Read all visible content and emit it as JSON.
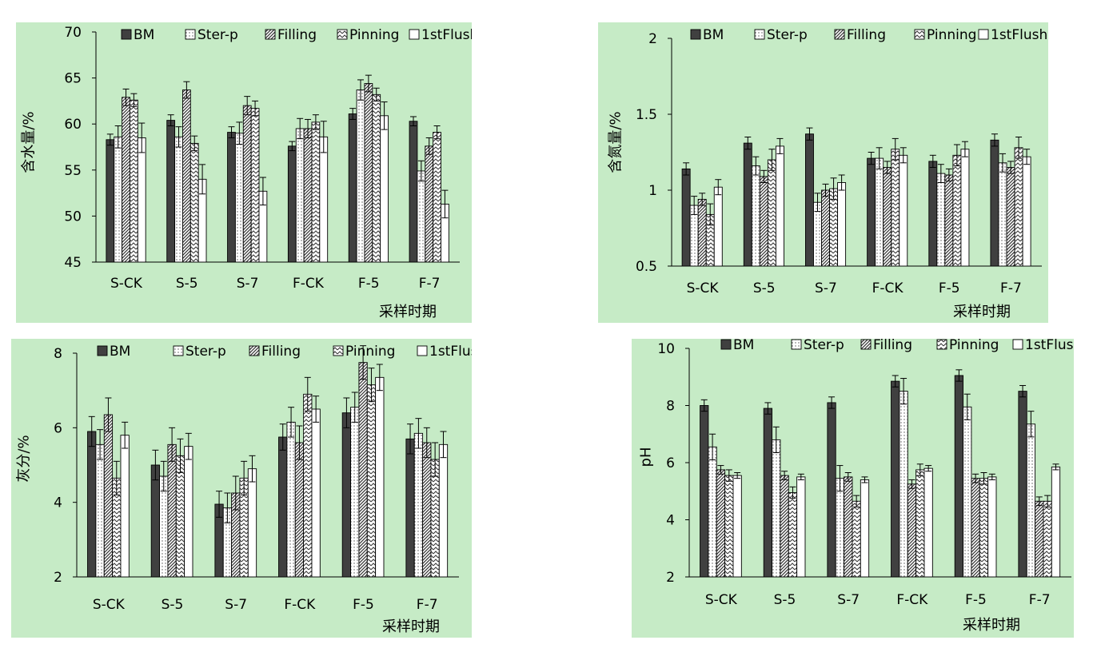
{
  "series_names": [
    "BM",
    "Ster-p",
    "Filling",
    "Pinning",
    "1stFlush"
  ],
  "categories": [
    "S-CK",
    "S-5",
    "S-7",
    "F-CK",
    "F-5",
    "F-7"
  ],
  "xlabel": "采样时期",
  "chart_data": [
    {
      "type": "bar",
      "ylabel": "含水量/%",
      "xlabel": "采样时期",
      "ylim": [
        45,
        70
      ],
      "yticks": [
        "45",
        "50",
        "55",
        "60",
        "65",
        "70"
      ],
      "categories": [
        "S-CK",
        "S-5",
        "S-7",
        "F-CK",
        "F-5",
        "F-7"
      ],
      "legend_position": "top",
      "series": [
        {
          "name": "BM",
          "values": [
            58.3,
            60.4,
            59.1,
            57.6,
            61.1,
            60.3
          ],
          "errors": [
            0.6,
            0.6,
            0.6,
            0.5,
            0.6,
            0.5
          ]
        },
        {
          "name": "Ster-p",
          "values": [
            58.6,
            58.6,
            59.0,
            59.5,
            63.7,
            54.9
          ],
          "errors": [
            1.2,
            1.1,
            1.2,
            1.1,
            1.1,
            1.1
          ]
        },
        {
          "name": "Filling",
          "values": [
            62.9,
            63.7,
            62.0,
            59.5,
            64.4,
            57.6
          ],
          "errors": [
            0.9,
            0.9,
            1.0,
            1.0,
            0.9,
            0.9
          ]
        },
        {
          "name": "Pinning",
          "values": [
            62.6,
            57.9,
            61.7,
            60.2,
            63.2,
            59.1
          ],
          "errors": [
            0.7,
            0.8,
            0.8,
            0.8,
            0.7,
            0.7
          ]
        },
        {
          "name": "1stFlush",
          "values": [
            58.5,
            54.0,
            52.7,
            58.6,
            60.9,
            51.3
          ],
          "errors": [
            1.6,
            1.6,
            1.5,
            1.7,
            1.5,
            1.5
          ]
        }
      ]
    },
    {
      "type": "bar",
      "ylabel": "含氮量/%",
      "xlabel": "采样时期",
      "ylim": [
        0.5,
        2
      ],
      "yticks": [
        "0.5",
        "1",
        "1.5",
        "2"
      ],
      "categories": [
        "S-CK",
        "S-5",
        "S-7",
        "F-CK",
        "F-5",
        "F-7"
      ],
      "legend_position": "top",
      "series": [
        {
          "name": "BM",
          "values": [
            1.14,
            1.31,
            1.37,
            1.21,
            1.19,
            1.33
          ],
          "errors": [
            0.04,
            0.04,
            0.04,
            0.04,
            0.04,
            0.04
          ]
        },
        {
          "name": "Ster-p",
          "values": [
            0.9,
            1.16,
            0.92,
            1.21,
            1.11,
            1.18
          ],
          "errors": [
            0.06,
            0.06,
            0.06,
            0.07,
            0.06,
            0.06
          ]
        },
        {
          "name": "Filling",
          "values": [
            0.94,
            1.09,
            1.0,
            1.15,
            1.1,
            1.15
          ],
          "errors": [
            0.04,
            0.04,
            0.04,
            0.04,
            0.04,
            0.04
          ]
        },
        {
          "name": "Pinning",
          "values": [
            0.84,
            1.2,
            1.01,
            1.27,
            1.23,
            1.28
          ],
          "errors": [
            0.07,
            0.07,
            0.07,
            0.07,
            0.07,
            0.07
          ]
        },
        {
          "name": "1stFlush",
          "values": [
            1.02,
            1.29,
            1.05,
            1.23,
            1.27,
            1.22
          ],
          "errors": [
            0.05,
            0.05,
            0.05,
            0.05,
            0.05,
            0.05
          ]
        }
      ]
    },
    {
      "type": "bar",
      "ylabel": "灰分/%",
      "xlabel": "采样时期",
      "ylim": [
        2,
        8
      ],
      "yticks": [
        "2",
        "4",
        "6",
        "8"
      ],
      "categories": [
        "S-CK",
        "S-5",
        "S-7",
        "F-CK",
        "F-5",
        "F-7"
      ],
      "legend_position": "top",
      "series": [
        {
          "name": "BM",
          "values": [
            5.9,
            5.0,
            3.95,
            5.75,
            6.4,
            5.7
          ],
          "errors": [
            0.4,
            0.4,
            0.35,
            0.35,
            0.4,
            0.4
          ]
        },
        {
          "name": "Ster-p",
          "values": [
            5.55,
            4.7,
            3.85,
            6.15,
            6.55,
            5.85
          ],
          "errors": [
            0.4,
            0.4,
            0.4,
            0.4,
            0.4,
            0.4
          ]
        },
        {
          "name": "Filling",
          "values": [
            6.35,
            5.55,
            4.25,
            5.6,
            7.75,
            5.6
          ],
          "errors": [
            0.45,
            0.45,
            0.45,
            0.45,
            0.45,
            0.4
          ]
        },
        {
          "name": "Pinning",
          "values": [
            4.65,
            5.25,
            4.65,
            6.9,
            7.15,
            5.15
          ],
          "errors": [
            0.45,
            0.45,
            0.45,
            0.45,
            0.45,
            0.45
          ]
        },
        {
          "name": "1stFlush",
          "values": [
            5.8,
            5.5,
            4.9,
            6.5,
            7.35,
            5.55
          ],
          "errors": [
            0.35,
            0.35,
            0.35,
            0.35,
            0.35,
            0.35
          ]
        }
      ]
    },
    {
      "type": "bar",
      "ylabel": "pH",
      "xlabel": "采样时期",
      "ylim": [
        2,
        10
      ],
      "yticks": [
        "2",
        "4",
        "6",
        "8",
        "10"
      ],
      "categories": [
        "S-CK",
        "S-5",
        "S-7",
        "F-CK",
        "F-5",
        "F-7"
      ],
      "legend_position": "top",
      "series": [
        {
          "name": "BM",
          "values": [
            8.0,
            7.9,
            8.1,
            8.85,
            9.05,
            8.5
          ],
          "errors": [
            0.2,
            0.2,
            0.2,
            0.2,
            0.2,
            0.2
          ]
        },
        {
          "name": "Ster-p",
          "values": [
            6.55,
            6.8,
            5.45,
            8.5,
            7.95,
            7.35
          ],
          "errors": [
            0.45,
            0.45,
            0.45,
            0.45,
            0.45,
            0.45
          ]
        },
        {
          "name": "Filling",
          "values": [
            5.75,
            5.55,
            5.5,
            5.25,
            5.45,
            4.65
          ],
          "errors": [
            0.15,
            0.15,
            0.15,
            0.15,
            0.15,
            0.15
          ]
        },
        {
          "name": "Pinning",
          "values": [
            5.55,
            4.95,
            4.65,
            5.75,
            5.45,
            4.65
          ],
          "errors": [
            0.2,
            0.2,
            0.2,
            0.2,
            0.2,
            0.2
          ]
        },
        {
          "name": "1stFlush",
          "values": [
            5.55,
            5.5,
            5.4,
            5.8,
            5.5,
            5.85
          ],
          "errors": [
            0.1,
            0.1,
            0.1,
            0.1,
            0.1,
            0.1
          ]
        }
      ]
    }
  ]
}
